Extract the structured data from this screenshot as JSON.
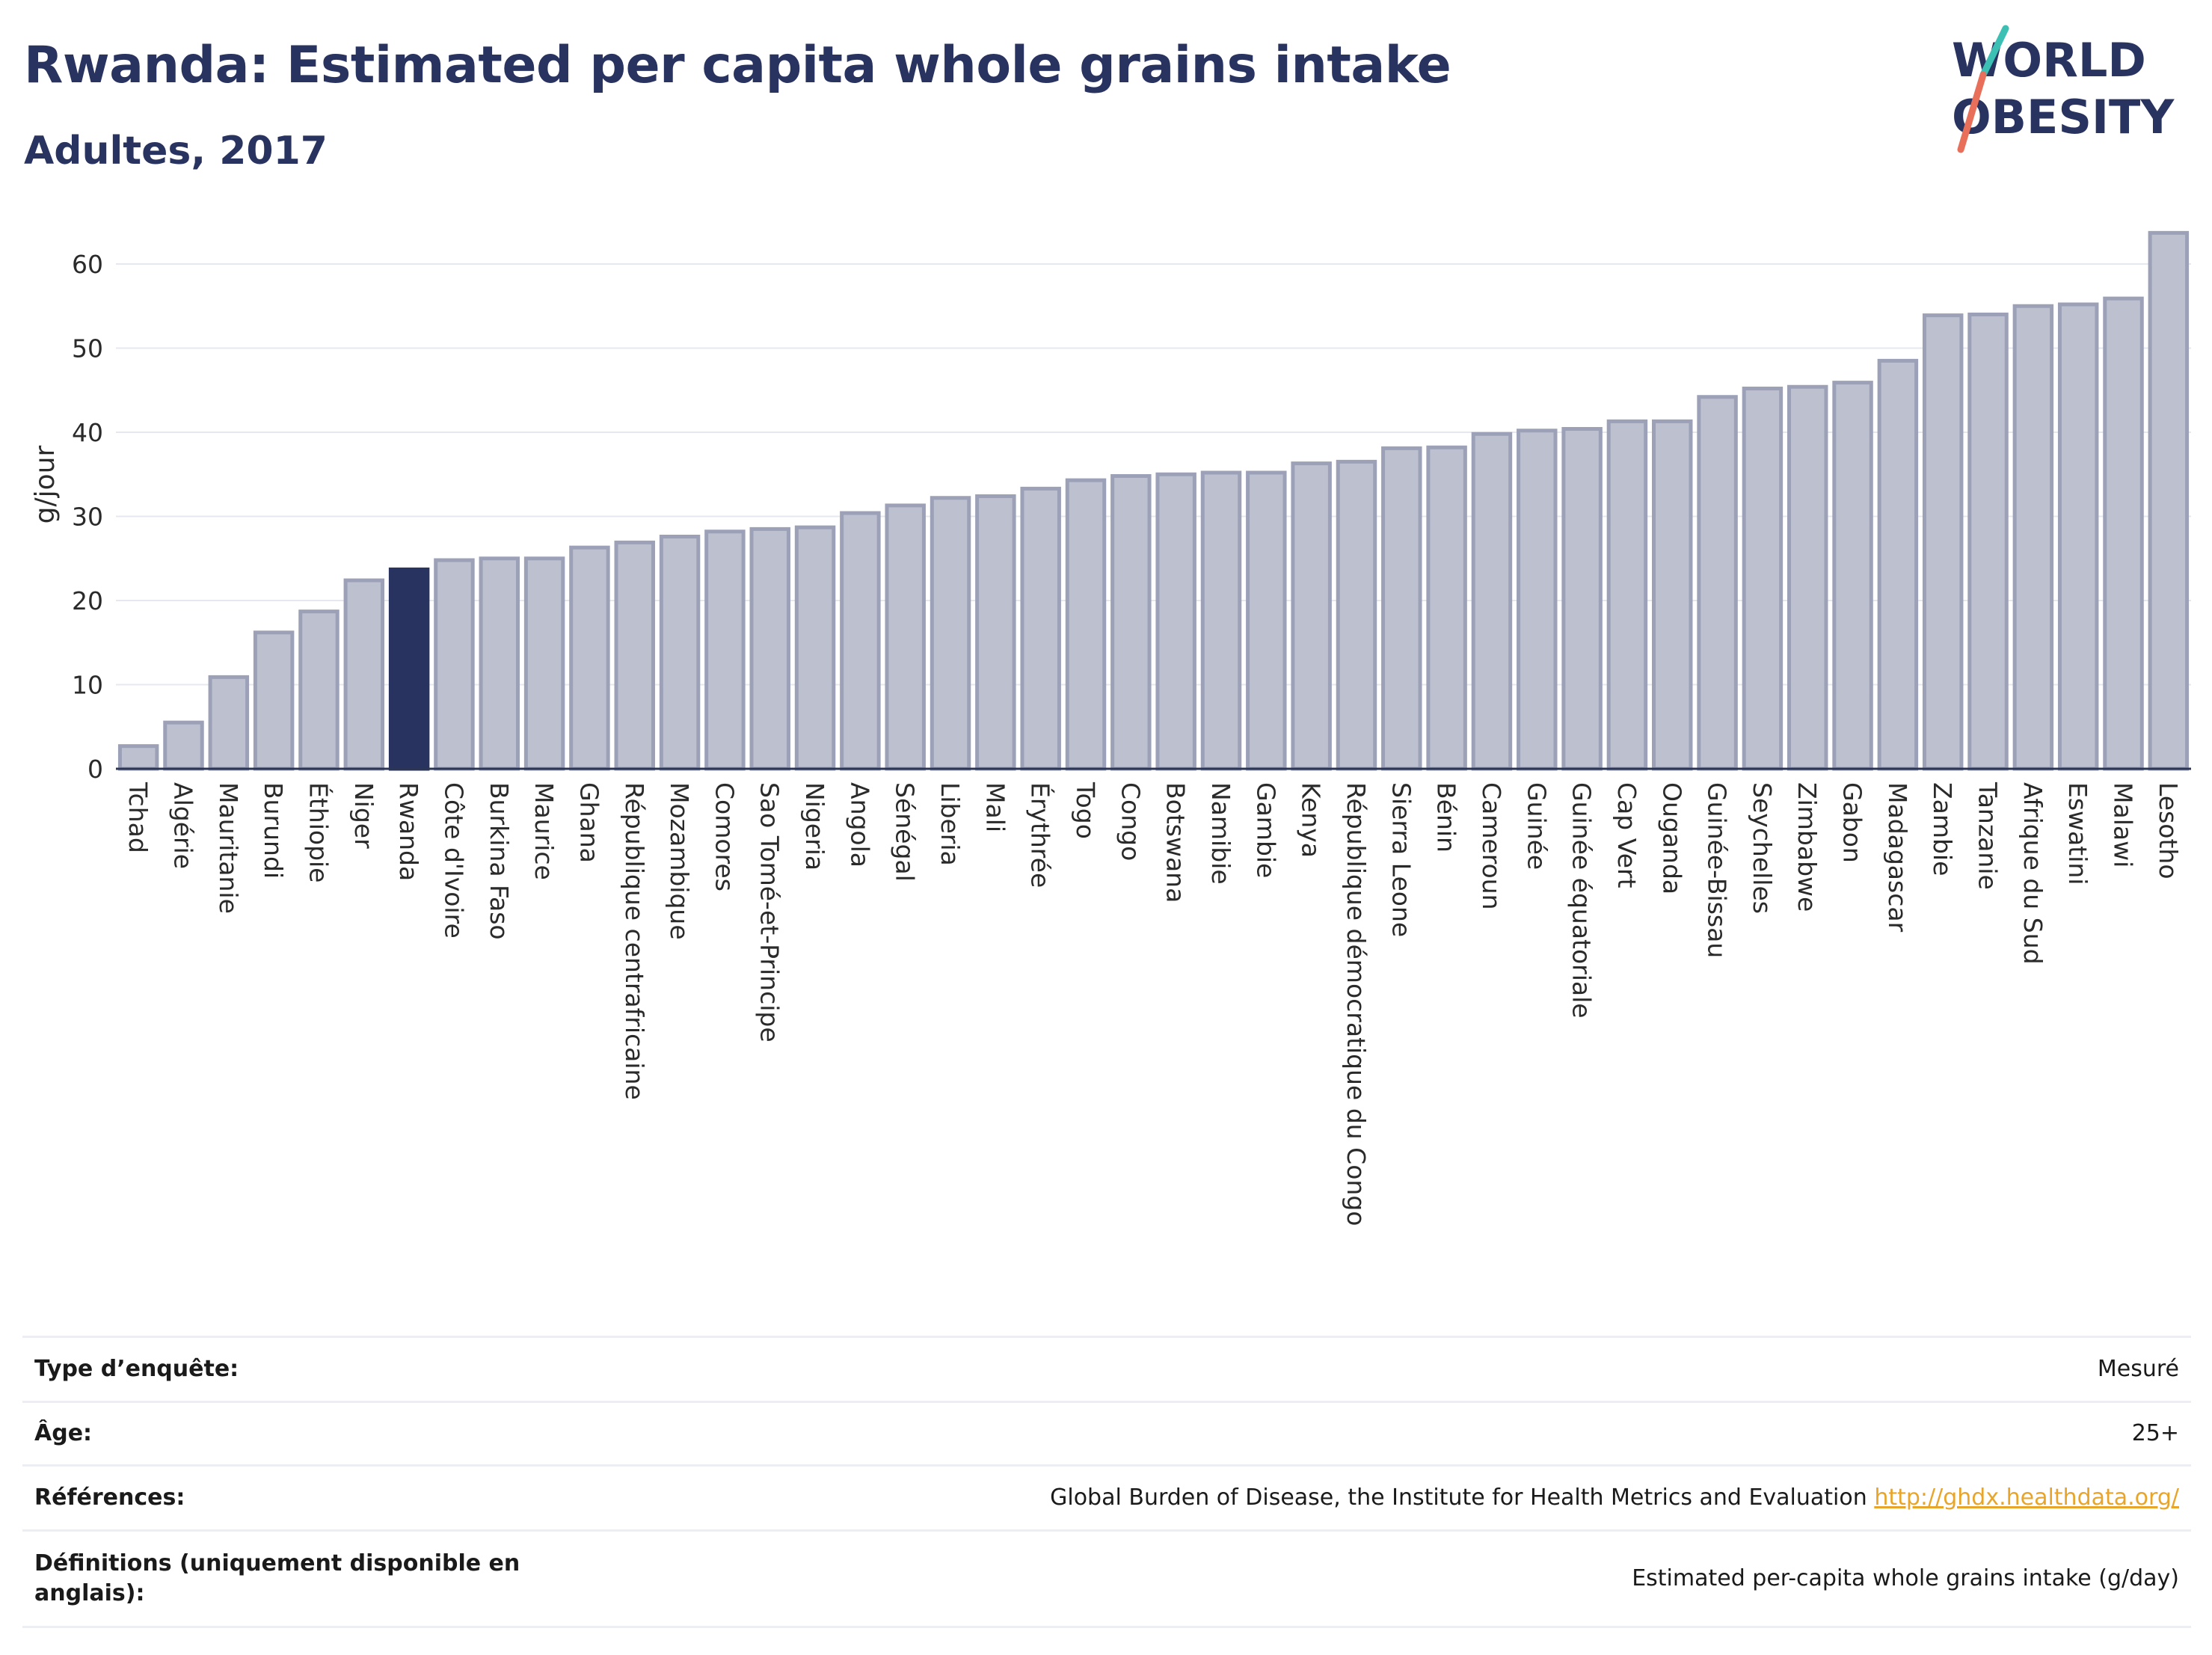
{
  "header": {
    "title": "Rwanda: Estimated per capita whole grains intake",
    "subtitle": "Adultes, 2017"
  },
  "logo": {
    "line1": "WORLD",
    "line2": "OBESITY",
    "accent_teal": "#3cc0b4",
    "accent_coral": "#e8705a"
  },
  "colors": {
    "bar_default": "#bcc0cf",
    "bar_default_border": "#9ca1b8",
    "bar_highlight": "#283360",
    "title": "#283360",
    "grid": "#e6e8ef",
    "link": "#e8a52b"
  },
  "chart_data": {
    "type": "bar",
    "title": "Rwanda: Estimated per capita whole grains intake",
    "subtitle": "Adultes, 2017",
    "xlabel": "",
    "ylabel": "g/jour",
    "ylim": [
      0,
      65
    ],
    "yticks": [
      0,
      10,
      20,
      30,
      40,
      50,
      60
    ],
    "grid": true,
    "legend": "none",
    "highlight": "Rwanda",
    "categories": [
      "Tchad",
      "Algérie",
      "Mauritanie",
      "Burundi",
      "Éthiopie",
      "Niger",
      "Rwanda",
      "Côte d'Ivoire",
      "Burkina Faso",
      "Maurice",
      "Ghana",
      "République centrafricaine",
      "Mozambique",
      "Comores",
      "Sao Tomé-et-Principe",
      "Nigeria",
      "Angola",
      "Sénégal",
      "Liberia",
      "Mali",
      "Érythrée",
      "Togo",
      "Congo",
      "Botswana",
      "Namibie",
      "Gambie",
      "Kenya",
      "République démocratique du Congo",
      "Sierra Leone",
      "Bénin",
      "Cameroun",
      "Guinée",
      "Guinée équatoriale",
      "Cap Vert",
      "Ouganda",
      "Guinée-Bissau",
      "Seychelles",
      "Zimbabwe",
      "Gabon",
      "Madagascar",
      "Zambie",
      "Tanzanie",
      "Afrique du Sud",
      "Eswatini",
      "Malawi",
      "Lesotho"
    ],
    "values": [
      2.7,
      5.5,
      10.9,
      16.2,
      18.7,
      22.4,
      23.7,
      24.8,
      25.0,
      25.0,
      26.3,
      26.9,
      27.6,
      28.2,
      28.5,
      28.7,
      30.4,
      31.3,
      32.2,
      32.4,
      33.3,
      34.3,
      34.8,
      35.0,
      35.2,
      35.2,
      36.3,
      36.5,
      38.1,
      38.2,
      39.8,
      40.2,
      40.4,
      41.3,
      41.3,
      44.2,
      45.2,
      45.4,
      45.9,
      48.5,
      53.9,
      54.0,
      55.0,
      55.2,
      55.9,
      63.7
    ]
  },
  "info_table": [
    {
      "label": "Type d’enquête:",
      "value": "Mesuré"
    },
    {
      "label": "Âge:",
      "value": "25+"
    },
    {
      "label": "Références:",
      "value": "Global Burden of Disease, the Institute for Health Metrics and Evaluation",
      "link": "http://ghdx.healthdata.org/"
    },
    {
      "label": "Définitions (uniquement disponible en anglais):",
      "value": "Estimated per-capita whole grains intake (g/day)"
    }
  ]
}
